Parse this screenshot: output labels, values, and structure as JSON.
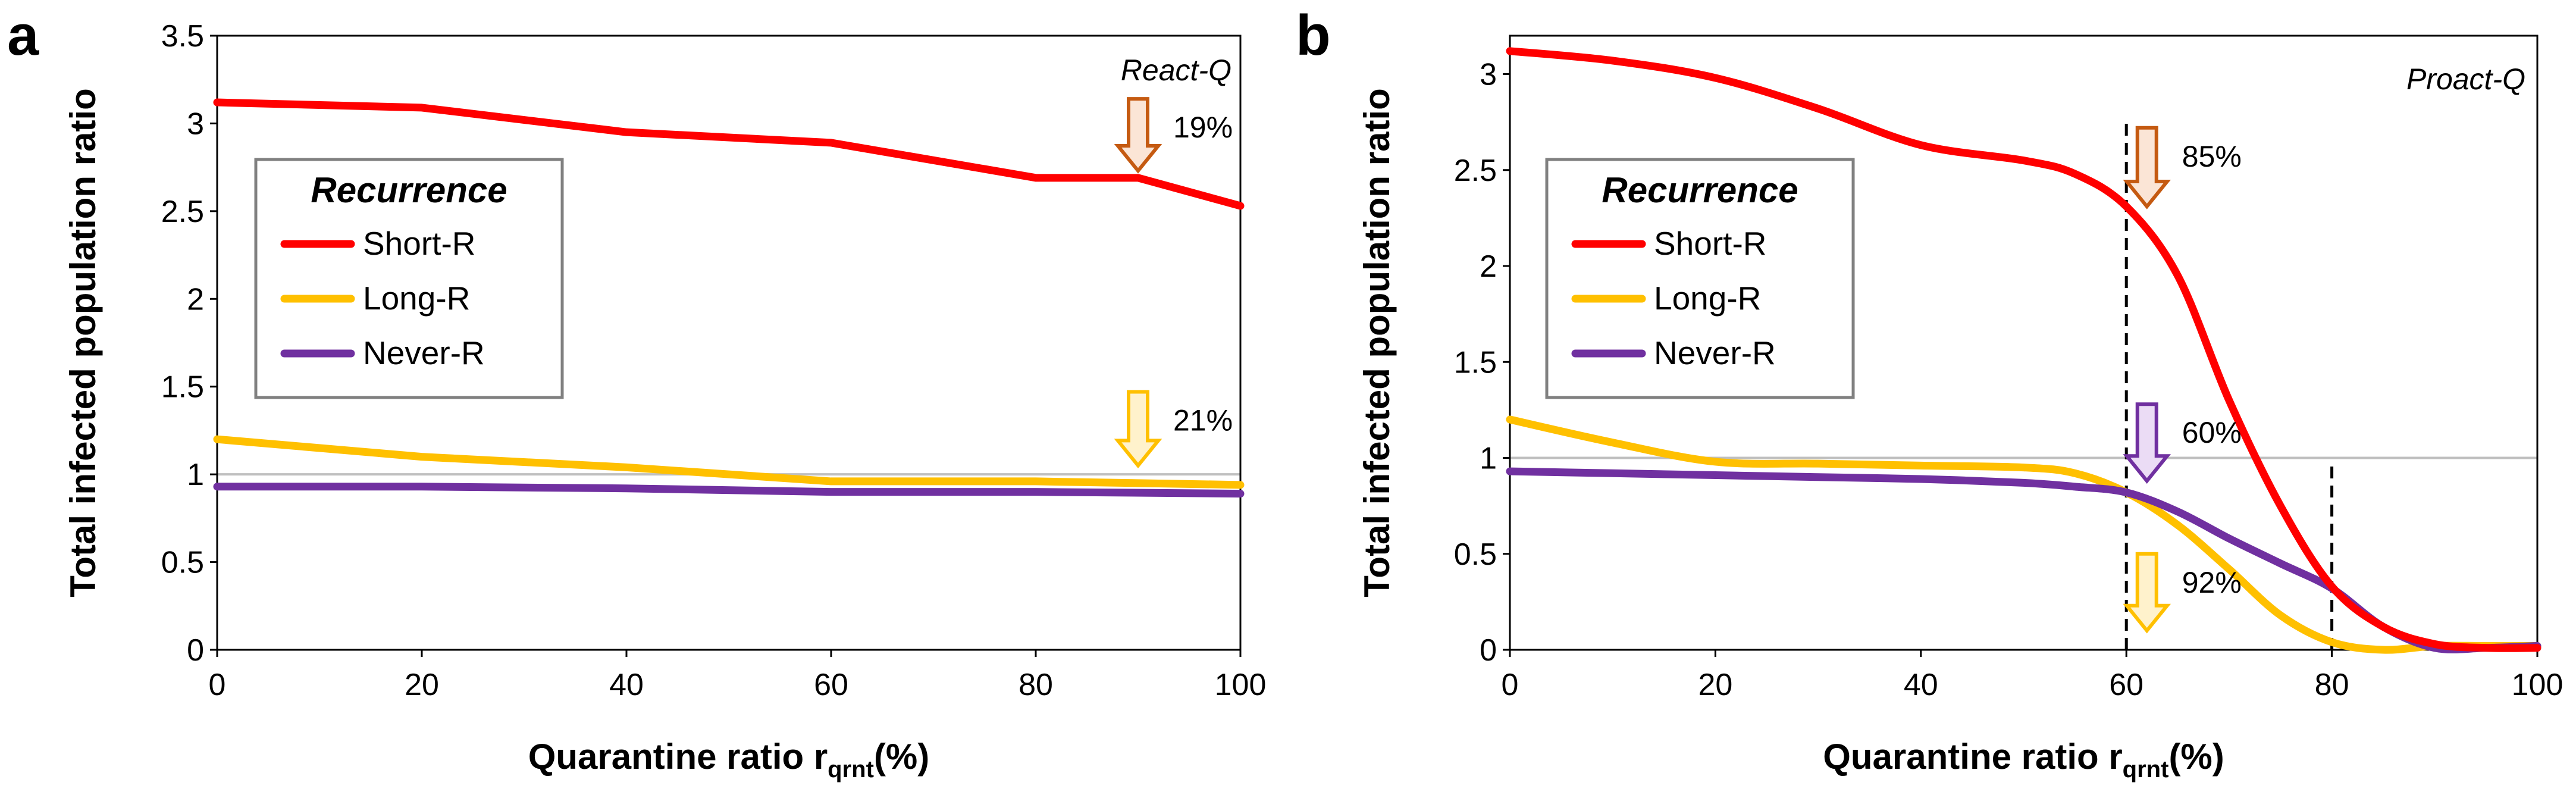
{
  "chart_data": [
    {
      "type": "line",
      "panel_label": "a",
      "corner_label": "React-Q",
      "ylabel": "Total infected population ratio",
      "xlabel_main": "Quarantine ratio r",
      "xlabel_sub": "qrnt",
      "xlabel_unit": "(%)",
      "xlim": [
        0,
        100
      ],
      "ylim": [
        0,
        3.5
      ],
      "xticks": [
        "0",
        "20",
        "40",
        "60",
        "80",
        "100"
      ],
      "yticks": [
        "0",
        "0.5",
        "1",
        "1.5",
        "2",
        "2.5",
        "3",
        "3.5"
      ],
      "reference_line_y": 1,
      "legend": {
        "title": "Recurrence",
        "placement": "upper-left"
      },
      "series": [
        {
          "name": "Short-R",
          "color": "#FF0000",
          "x": [
            0,
            20,
            40,
            60,
            80,
            90,
            100
          ],
          "y": [
            3.12,
            3.09,
            2.95,
            2.89,
            2.69,
            2.69,
            2.53
          ]
        },
        {
          "name": "Long-R",
          "color": "#FFC000",
          "x": [
            0,
            20,
            40,
            60,
            80,
            100
          ],
          "y": [
            1.2,
            1.1,
            1.04,
            0.96,
            0.96,
            0.94
          ]
        },
        {
          "name": "Never-R",
          "color": "#7030A0",
          "x": [
            0,
            20,
            40,
            60,
            80,
            100
          ],
          "y": [
            0.93,
            0.93,
            0.92,
            0.9,
            0.9,
            0.89
          ]
        }
      ],
      "annotations": [
        {
          "text": "19%",
          "x": 90,
          "y_from": 3.14,
          "y_to": 2.73,
          "color": "#C55A11",
          "fill": "#FBE5D6"
        },
        {
          "text": "21%",
          "x": 90,
          "y_from": 1.47,
          "y_to": 1.05,
          "color": "#FFC000",
          "fill": "#FFF2CC"
        }
      ]
    },
    {
      "type": "line",
      "panel_label": "b",
      "corner_label": "Proact-Q",
      "ylabel": "Total infected population ratio",
      "xlabel_main": "Quarantine ratio r",
      "xlabel_sub": "qrnt",
      "xlabel_unit": "(%)",
      "xlim": [
        0,
        100
      ],
      "ylim": [
        0,
        3.2
      ],
      "xticks": [
        "0",
        "20",
        "40",
        "60",
        "80",
        "100"
      ],
      "yticks": [
        "0",
        "0.5",
        "1",
        "1.5",
        "2",
        "2.5",
        "3"
      ],
      "reference_line_y": 1,
      "vertical_dashed_x": [
        60,
        80
      ],
      "legend": {
        "title": "Recurrence",
        "placement": "upper-left"
      },
      "series": [
        {
          "name": "Short-R",
          "color": "#FF0000",
          "x": [
            0,
            10,
            20,
            30,
            40,
            50,
            55,
            60,
            65,
            70,
            75,
            80,
            85,
            90,
            95,
            100
          ],
          "y": [
            3.12,
            3.07,
            2.98,
            2.82,
            2.63,
            2.55,
            2.48,
            2.31,
            1.95,
            1.3,
            0.75,
            0.33,
            0.12,
            0.03,
            0.01,
            0.01
          ]
        },
        {
          "name": "Long-R",
          "color": "#FFC000",
          "x": [
            0,
            10,
            20,
            30,
            40,
            50,
            55,
            60,
            65,
            70,
            75,
            80,
            85,
            90,
            95,
            100
          ],
          "y": [
            1.2,
            1.08,
            0.98,
            0.97,
            0.96,
            0.95,
            0.92,
            0.82,
            0.65,
            0.42,
            0.18,
            0.04,
            0.0,
            0.02,
            0.02,
            0.02
          ]
        },
        {
          "name": "Never-R",
          "color": "#7030A0",
          "x": [
            0,
            10,
            20,
            30,
            40,
            50,
            55,
            60,
            65,
            70,
            75,
            80,
            85,
            90,
            95,
            100
          ],
          "y": [
            0.93,
            0.92,
            0.91,
            0.9,
            0.89,
            0.87,
            0.85,
            0.82,
            0.72,
            0.58,
            0.45,
            0.32,
            0.12,
            0.01,
            0.01,
            0.02
          ]
        }
      ],
      "annotations": [
        {
          "text": "85%",
          "x": 62,
          "y_from": 2.72,
          "y_to": 2.31,
          "color": "#C55A11",
          "fill": "#FBE5D6"
        },
        {
          "text": "60%",
          "x": 62,
          "y_from": 1.28,
          "y_to": 0.88,
          "color": "#7030A0",
          "fill": "#EBDCF5"
        },
        {
          "text": "92%",
          "x": 62,
          "y_from": 0.5,
          "y_to": 0.1,
          "color": "#FFC000",
          "fill": "#FFF2CC"
        }
      ]
    }
  ]
}
